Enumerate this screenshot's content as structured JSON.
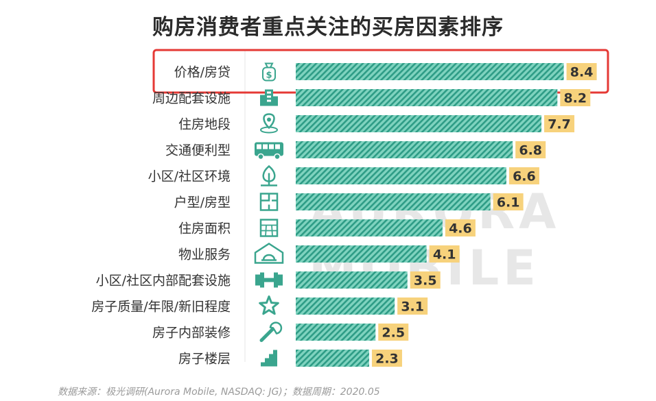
{
  "chart_data": {
    "type": "bar",
    "orientation": "horizontal",
    "title": "购房消费者重点关注的买房因素排序",
    "categories": [
      "价格/房贷",
      "周边配套设施",
      "住房地段",
      "交通便利型",
      "小区/社区环境",
      "户型/房型",
      "住房面积",
      "物业服务",
      "小区/社区内部配套设施",
      "房子质量/年限/新旧程度",
      "房子内部装修",
      "房子楼层"
    ],
    "values": [
      8.4,
      8.2,
      7.7,
      6.8,
      6.6,
      6.1,
      4.6,
      4.1,
      3.5,
      3.1,
      2.5,
      2.3
    ],
    "value_labels": [
      "8.4",
      "8.2",
      "7.7",
      "6.8",
      "6.6",
      "6.1",
      "4.6",
      "4.1",
      "3.5",
      "3.1",
      "2.5",
      "2.3"
    ],
    "icons": [
      "money-bag-icon",
      "building-icon",
      "location-pin-icon",
      "bus-icon",
      "tree-icon",
      "floor-plan-icon",
      "area-grid-icon",
      "house-service-icon",
      "dumbbell-icon",
      "star-icon",
      "wrench-icon",
      "stairs-icon"
    ],
    "highlighted_category": "价格/房贷",
    "grid": false,
    "colors": {
      "bar": "#4dbfa6",
      "bar_hatch": "#2e9c86",
      "value_badge": "#f7d27c",
      "highlight_box": "#e53935",
      "icon": "#3aa58e"
    }
  },
  "source_note": "数据来源：极光调研(Aurora Mobile, NASDAQ: JG)；数据周期：2020.05",
  "watermark": "AURORA MOBILE"
}
